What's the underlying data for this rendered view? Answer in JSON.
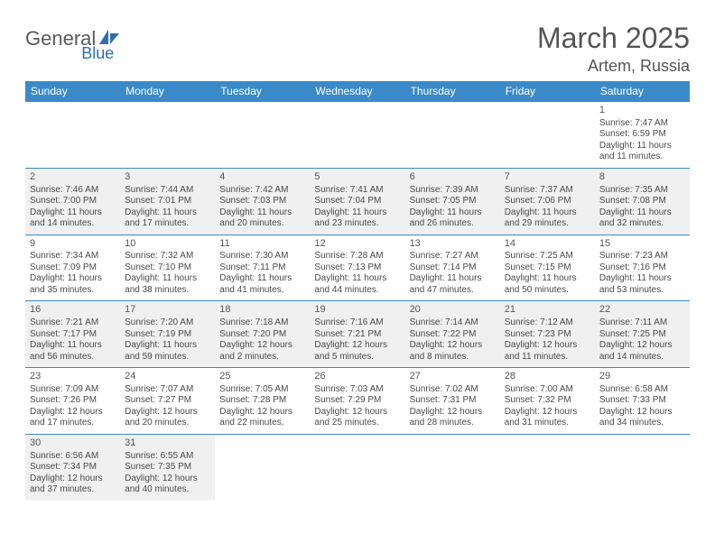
{
  "brand": {
    "name_part1": "General",
    "name_part2": "Blue"
  },
  "title": "March 2025",
  "location": "Artem, Russia",
  "colors": {
    "header_bg": "#3a8ac9",
    "header_text": "#ffffff",
    "shade_bg": "#f0f0f0",
    "text": "#4a4a4a",
    "title_text": "#555555"
  },
  "day_names": [
    "Sunday",
    "Monday",
    "Tuesday",
    "Wednesday",
    "Thursday",
    "Friday",
    "Saturday"
  ],
  "weeks": [
    [
      {
        "blank": true
      },
      {
        "blank": true
      },
      {
        "blank": true
      },
      {
        "blank": true
      },
      {
        "blank": true
      },
      {
        "blank": true
      },
      {
        "day": "1",
        "sunrise": "Sunrise: 7:47 AM",
        "sunset": "Sunset: 6:59 PM",
        "day1": "Daylight: 11 hours",
        "day2": "and 11 minutes."
      }
    ],
    [
      {
        "day": "2",
        "shaded": true,
        "sunrise": "Sunrise: 7:46 AM",
        "sunset": "Sunset: 7:00 PM",
        "day1": "Daylight: 11 hours",
        "day2": "and 14 minutes."
      },
      {
        "day": "3",
        "shaded": true,
        "sunrise": "Sunrise: 7:44 AM",
        "sunset": "Sunset: 7:01 PM",
        "day1": "Daylight: 11 hours",
        "day2": "and 17 minutes."
      },
      {
        "day": "4",
        "shaded": true,
        "sunrise": "Sunrise: 7:42 AM",
        "sunset": "Sunset: 7:03 PM",
        "day1": "Daylight: 11 hours",
        "day2": "and 20 minutes."
      },
      {
        "day": "5",
        "shaded": true,
        "sunrise": "Sunrise: 7:41 AM",
        "sunset": "Sunset: 7:04 PM",
        "day1": "Daylight: 11 hours",
        "day2": "and 23 minutes."
      },
      {
        "day": "6",
        "shaded": true,
        "sunrise": "Sunrise: 7:39 AM",
        "sunset": "Sunset: 7:05 PM",
        "day1": "Daylight: 11 hours",
        "day2": "and 26 minutes."
      },
      {
        "day": "7",
        "shaded": true,
        "sunrise": "Sunrise: 7:37 AM",
        "sunset": "Sunset: 7:06 PM",
        "day1": "Daylight: 11 hours",
        "day2": "and 29 minutes."
      },
      {
        "day": "8",
        "shaded": true,
        "sunrise": "Sunrise: 7:35 AM",
        "sunset": "Sunset: 7:08 PM",
        "day1": "Daylight: 11 hours",
        "day2": "and 32 minutes."
      }
    ],
    [
      {
        "day": "9",
        "sunrise": "Sunrise: 7:34 AM",
        "sunset": "Sunset: 7:09 PM",
        "day1": "Daylight: 11 hours",
        "day2": "and 35 minutes."
      },
      {
        "day": "10",
        "sunrise": "Sunrise: 7:32 AM",
        "sunset": "Sunset: 7:10 PM",
        "day1": "Daylight: 11 hours",
        "day2": "and 38 minutes."
      },
      {
        "day": "11",
        "sunrise": "Sunrise: 7:30 AM",
        "sunset": "Sunset: 7:11 PM",
        "day1": "Daylight: 11 hours",
        "day2": "and 41 minutes."
      },
      {
        "day": "12",
        "sunrise": "Sunrise: 7:28 AM",
        "sunset": "Sunset: 7:13 PM",
        "day1": "Daylight: 11 hours",
        "day2": "and 44 minutes."
      },
      {
        "day": "13",
        "sunrise": "Sunrise: 7:27 AM",
        "sunset": "Sunset: 7:14 PM",
        "day1": "Daylight: 11 hours",
        "day2": "and 47 minutes."
      },
      {
        "day": "14",
        "sunrise": "Sunrise: 7:25 AM",
        "sunset": "Sunset: 7:15 PM",
        "day1": "Daylight: 11 hours",
        "day2": "and 50 minutes."
      },
      {
        "day": "15",
        "sunrise": "Sunrise: 7:23 AM",
        "sunset": "Sunset: 7:16 PM",
        "day1": "Daylight: 11 hours",
        "day2": "and 53 minutes."
      }
    ],
    [
      {
        "day": "16",
        "shaded": true,
        "sunrise": "Sunrise: 7:21 AM",
        "sunset": "Sunset: 7:17 PM",
        "day1": "Daylight: 11 hours",
        "day2": "and 56 minutes."
      },
      {
        "day": "17",
        "shaded": true,
        "sunrise": "Sunrise: 7:20 AM",
        "sunset": "Sunset: 7:19 PM",
        "day1": "Daylight: 11 hours",
        "day2": "and 59 minutes."
      },
      {
        "day": "18",
        "shaded": true,
        "sunrise": "Sunrise: 7:18 AM",
        "sunset": "Sunset: 7:20 PM",
        "day1": "Daylight: 12 hours",
        "day2": "and 2 minutes."
      },
      {
        "day": "19",
        "shaded": true,
        "sunrise": "Sunrise: 7:16 AM",
        "sunset": "Sunset: 7:21 PM",
        "day1": "Daylight: 12 hours",
        "day2": "and 5 minutes."
      },
      {
        "day": "20",
        "shaded": true,
        "sunrise": "Sunrise: 7:14 AM",
        "sunset": "Sunset: 7:22 PM",
        "day1": "Daylight: 12 hours",
        "day2": "and 8 minutes."
      },
      {
        "day": "21",
        "shaded": true,
        "sunrise": "Sunrise: 7:12 AM",
        "sunset": "Sunset: 7:23 PM",
        "day1": "Daylight: 12 hours",
        "day2": "and 11 minutes."
      },
      {
        "day": "22",
        "shaded": true,
        "sunrise": "Sunrise: 7:11 AM",
        "sunset": "Sunset: 7:25 PM",
        "day1": "Daylight: 12 hours",
        "day2": "and 14 minutes."
      }
    ],
    [
      {
        "day": "23",
        "sunrise": "Sunrise: 7:09 AM",
        "sunset": "Sunset: 7:26 PM",
        "day1": "Daylight: 12 hours",
        "day2": "and 17 minutes."
      },
      {
        "day": "24",
        "sunrise": "Sunrise: 7:07 AM",
        "sunset": "Sunset: 7:27 PM",
        "day1": "Daylight: 12 hours",
        "day2": "and 20 minutes."
      },
      {
        "day": "25",
        "sunrise": "Sunrise: 7:05 AM",
        "sunset": "Sunset: 7:28 PM",
        "day1": "Daylight: 12 hours",
        "day2": "and 22 minutes."
      },
      {
        "day": "26",
        "sunrise": "Sunrise: 7:03 AM",
        "sunset": "Sunset: 7:29 PM",
        "day1": "Daylight: 12 hours",
        "day2": "and 25 minutes."
      },
      {
        "day": "27",
        "sunrise": "Sunrise: 7:02 AM",
        "sunset": "Sunset: 7:31 PM",
        "day1": "Daylight: 12 hours",
        "day2": "and 28 minutes."
      },
      {
        "day": "28",
        "sunrise": "Sunrise: 7:00 AM",
        "sunset": "Sunset: 7:32 PM",
        "day1": "Daylight: 12 hours",
        "day2": "and 31 minutes."
      },
      {
        "day": "29",
        "sunrise": "Sunrise: 6:58 AM",
        "sunset": "Sunset: 7:33 PM",
        "day1": "Daylight: 12 hours",
        "day2": "and 34 minutes."
      }
    ],
    [
      {
        "day": "30",
        "shaded": true,
        "sunrise": "Sunrise: 6:56 AM",
        "sunset": "Sunset: 7:34 PM",
        "day1": "Daylight: 12 hours",
        "day2": "and 37 minutes."
      },
      {
        "day": "31",
        "shaded": true,
        "sunrise": "Sunrise: 6:55 AM",
        "sunset": "Sunset: 7:35 PM",
        "day1": "Daylight: 12 hours",
        "day2": "and 40 minutes."
      },
      {
        "blank": true
      },
      {
        "blank": true
      },
      {
        "blank": true
      },
      {
        "blank": true
      },
      {
        "blank": true
      }
    ]
  ]
}
